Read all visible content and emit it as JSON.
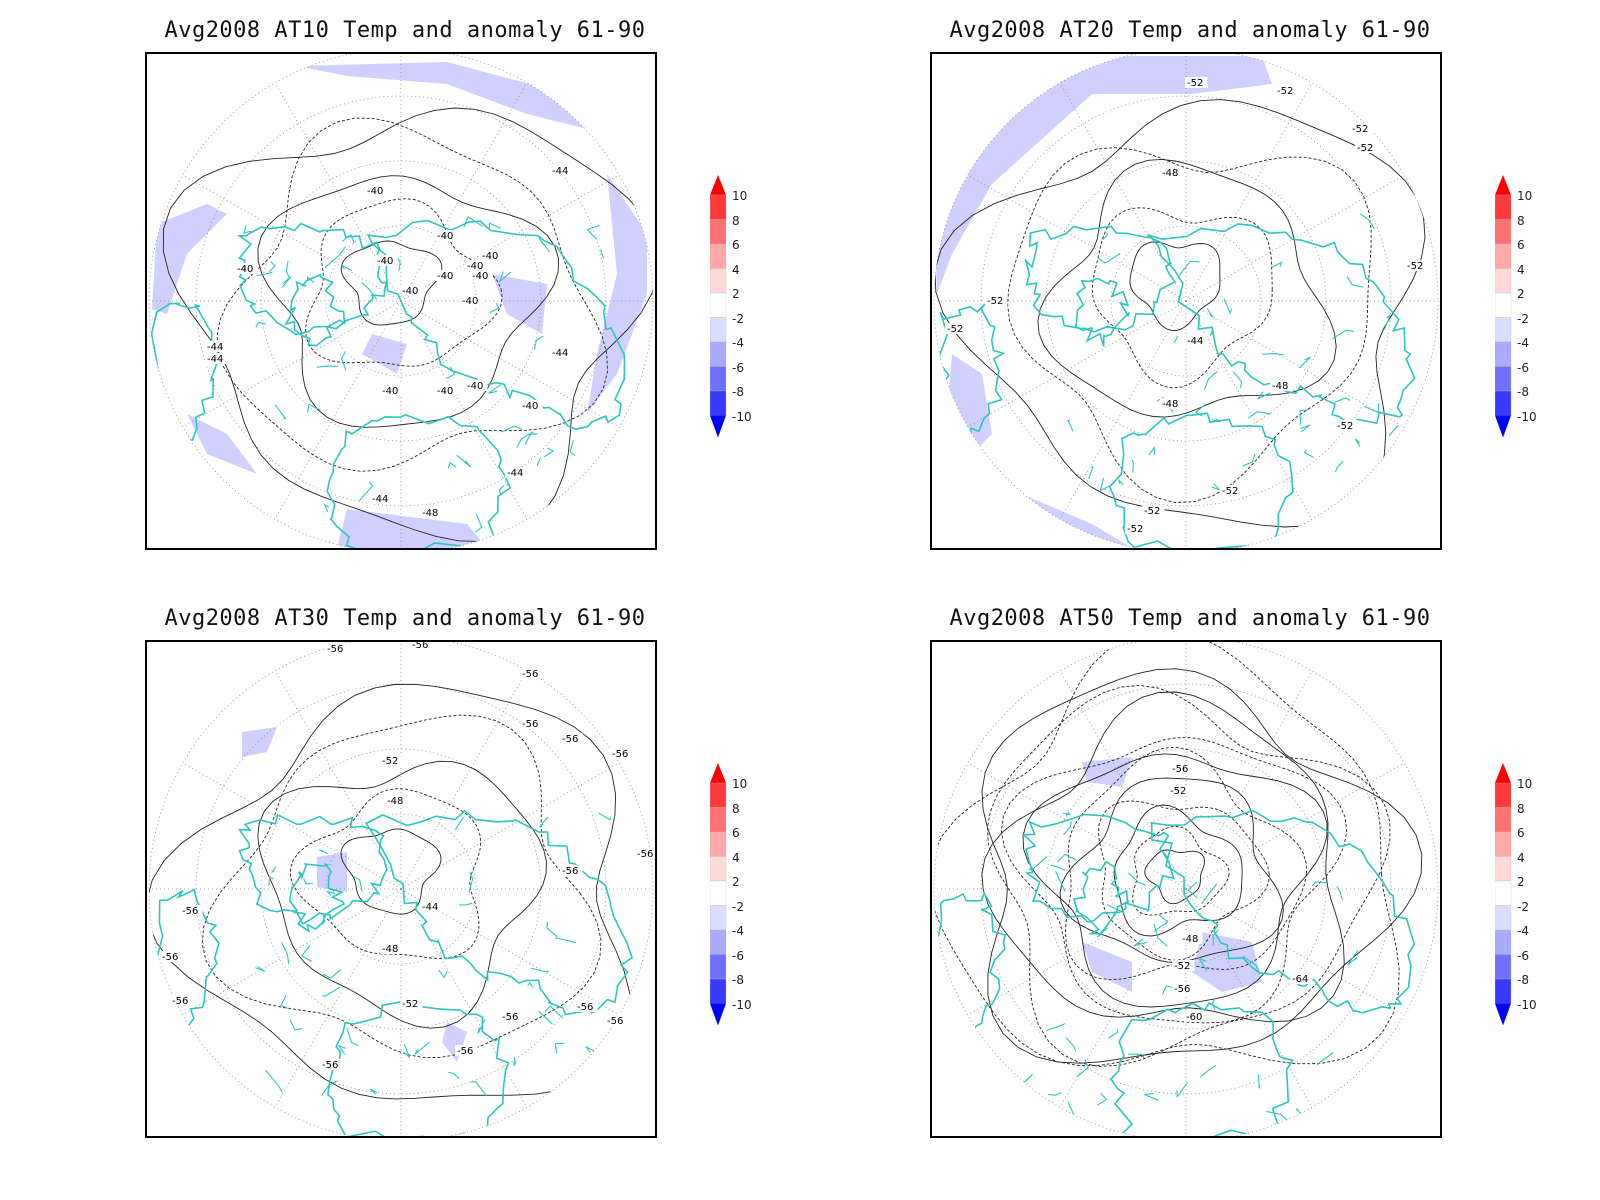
{
  "panels": [
    {
      "title": "Avg2008 AT10 Temp and anomaly 61-90",
      "contour_labels": [
        "-44",
        "-40",
        "-40",
        "-40",
        "-40",
        "-40",
        "-40",
        "-40",
        "-44",
        "-44",
        "-44",
        "-40",
        "-40",
        "-40",
        "-40",
        "-40",
        "-40",
        "-40",
        "-44",
        "-44",
        "-48"
      ]
    },
    {
      "title": "Avg2008 AT20 Temp and anomaly 61-90",
      "contour_labels": [
        "-52",
        "-52",
        "-52",
        "-52",
        "-48",
        "-52",
        "-52",
        "-52",
        "-44",
        "-48",
        "-48",
        "-52",
        "-52",
        "-52",
        "-52"
      ]
    },
    {
      "title": "Avg2008 AT30 Temp and anomaly 61-90",
      "contour_labels": [
        "-56",
        "-56",
        "-56",
        "-56",
        "-56",
        "-56",
        "-52",
        "-48",
        "-44",
        "-48",
        "-52",
        "-56",
        "-56",
        "-56",
        "-56",
        "-56",
        "-56",
        "-56",
        "-56",
        "-56",
        "-56"
      ]
    },
    {
      "title": "Avg2008 AT50 Temp and anomaly 61-90",
      "contour_labels": [
        "-56",
        "-52",
        "-48",
        "-52",
        "-56",
        "-60",
        "-64"
      ]
    }
  ],
  "colorbar": {
    "labels": [
      "10",
      "8",
      "6",
      "4",
      "2",
      "-2",
      "-4",
      "-6",
      "-8",
      "-10"
    ],
    "colors": [
      "#ff0000",
      "#ff3a3a",
      "#ff7070",
      "#ffa8a8",
      "#ffd8d8",
      "#ffffff",
      "#dcdcff",
      "#aaaaff",
      "#7070ff",
      "#3a3aff",
      "#0000ff"
    ]
  },
  "colors": {
    "coastline": "#2ec5c0",
    "anomaly_shade": "#d0d0ff",
    "contour": "#222222",
    "grid": "#888888"
  }
}
